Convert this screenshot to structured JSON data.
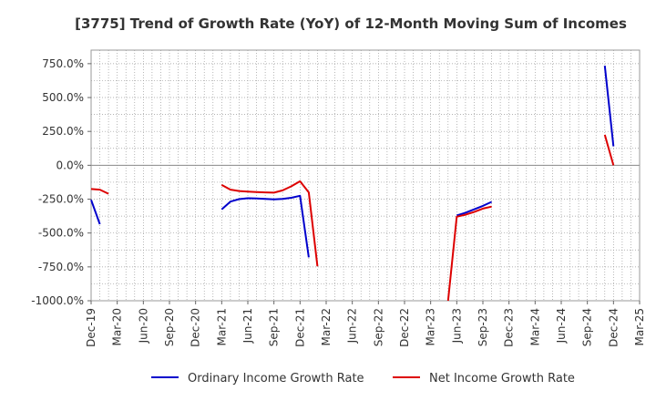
{
  "chart_data": {
    "type": "line",
    "title": "[3775]  Trend of Growth Rate (YoY) of 12-Month Moving Sum of Incomes",
    "xlabel": "",
    "ylabel": "",
    "ylim": [
      -1000,
      850
    ],
    "y_ticks": [
      750,
      500,
      250,
      0,
      -250,
      -500,
      -750,
      -1000
    ],
    "y_tick_labels": [
      "750.0%",
      "500.0%",
      "250.0%",
      "0.0%",
      "-250.0%",
      "-500.0%",
      "-750.0%",
      "-1000.0%"
    ],
    "x_tick_labels": [
      "Dec-19",
      "Mar-20",
      "Jun-20",
      "Sep-20",
      "Dec-20",
      "Mar-21",
      "Jun-21",
      "Sep-21",
      "Dec-21",
      "Mar-22",
      "Jun-22",
      "Sep-22",
      "Dec-22",
      "Mar-23",
      "Jun-23",
      "Sep-23",
      "Dec-23",
      "Mar-24",
      "Jun-24",
      "Sep-24",
      "Dec-24",
      "Mar-25"
    ],
    "grid": true,
    "legend_position": "bottom",
    "series": [
      {
        "name": "Ordinary Income Growth Rate",
        "color": "#0000cc",
        "points": [
          [
            "Dec-19",
            -255
          ],
          [
            "Jan-20",
            -435
          ],
          null,
          [
            "Mar-21",
            -325
          ],
          [
            "Apr-21",
            -268
          ],
          [
            "May-21",
            -250
          ],
          [
            "Jun-21",
            -243
          ],
          [
            "Jul-21",
            -245
          ],
          [
            "Aug-21",
            -248
          ],
          [
            "Sep-21",
            -252
          ],
          [
            "Oct-21",
            -248
          ],
          [
            "Nov-21",
            -240
          ],
          [
            "Dec-21",
            -225
          ],
          [
            "Jan-22",
            -680
          ],
          null,
          [
            "Jun-23",
            -370
          ],
          [
            "Jul-23",
            -350
          ],
          [
            "Aug-23",
            -325
          ],
          [
            "Sep-23",
            -300
          ],
          [
            "Oct-23",
            -270
          ],
          null,
          [
            "Nov-24",
            735
          ],
          [
            "Dec-24",
            140
          ]
        ]
      },
      {
        "name": "Net Income Growth Rate",
        "color": "#dd0000",
        "points": [
          [
            "Dec-19",
            -175
          ],
          [
            "Jan-20",
            -180
          ],
          [
            "Feb-20",
            -210
          ],
          null,
          [
            "Mar-21",
            -145
          ],
          [
            "Apr-21",
            -180
          ],
          [
            "May-21",
            -190
          ],
          [
            "Jun-21",
            -195
          ],
          [
            "Jul-21",
            -198
          ],
          [
            "Aug-21",
            -200
          ],
          [
            "Sep-21",
            -202
          ],
          [
            "Oct-21",
            -185
          ],
          [
            "Nov-21",
            -155
          ],
          [
            "Dec-21",
            -118
          ],
          [
            "Jan-22",
            -200
          ],
          [
            "Feb-22",
            -745
          ],
          null,
          [
            "May-23",
            -1000
          ],
          [
            "Jun-23",
            -380
          ],
          [
            "Jul-23",
            -365
          ],
          [
            "Aug-23",
            -345
          ],
          [
            "Sep-23",
            -320
          ],
          [
            "Oct-23",
            -305
          ],
          null,
          [
            "Nov-24",
            225
          ],
          [
            "Dec-24",
            0
          ]
        ]
      }
    ]
  }
}
